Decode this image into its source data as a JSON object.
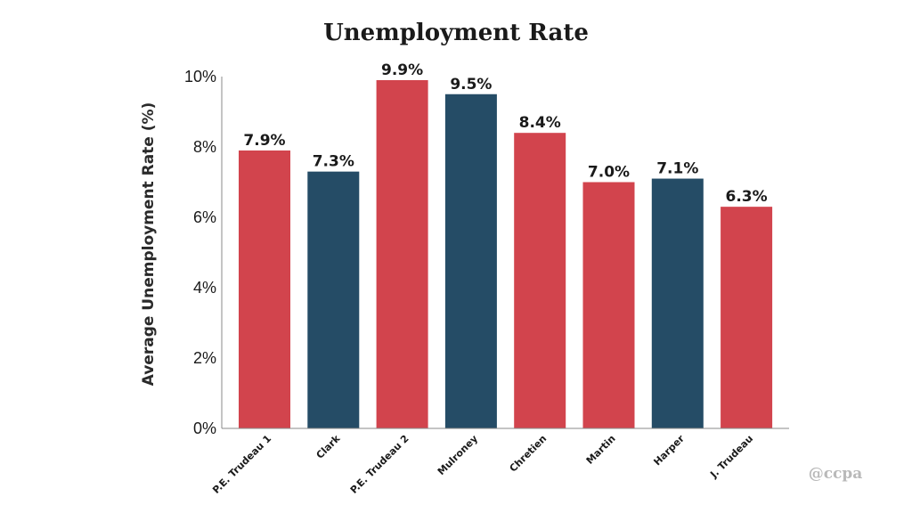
{
  "chart_data": {
    "type": "bar",
    "title": "Unemployment Rate",
    "ylabel": "Average Unemployment Rate (%)",
    "xlabel": "",
    "ylim": [
      0,
      10
    ],
    "yticks": [
      "0%",
      "2%",
      "4%",
      "6%",
      "8%",
      "10%"
    ],
    "categories": [
      "P.E. Trudeau 1",
      "Clark",
      "P.E. Trudeau 2",
      "Mulroney",
      "Chretien",
      "Martin",
      "Harper",
      "J. Trudeau"
    ],
    "values": [
      7.9,
      7.3,
      9.9,
      9.5,
      8.4,
      7.0,
      7.1,
      6.3
    ],
    "data_labels": [
      "7.9%",
      "7.3%",
      "9.9%",
      "9.5%",
      "8.4%",
      "7.0%",
      "7.1%",
      "6.3%"
    ],
    "bar_colors": [
      "#d2444d",
      "#254c66",
      "#d2444d",
      "#254c66",
      "#d2444d",
      "#d2444d",
      "#254c66",
      "#d2444d"
    ],
    "grid": false,
    "legend": "none"
  },
  "watermark": "@ccpa",
  "colors": {
    "red": "#d2444d",
    "blue": "#254c66",
    "axis": "#888888"
  }
}
